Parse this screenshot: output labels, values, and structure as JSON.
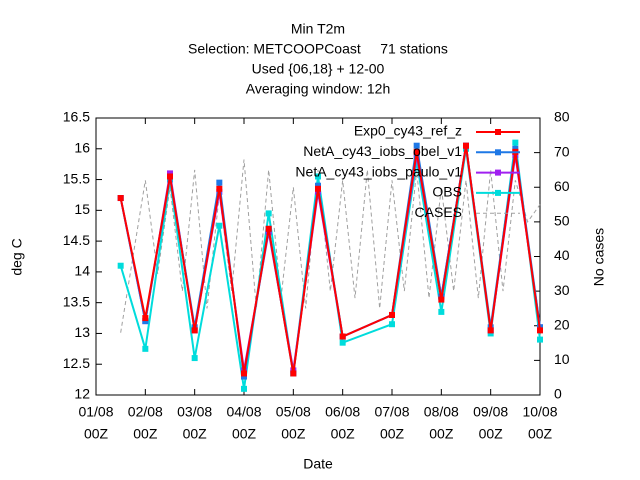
{
  "chart_data": {
    "type": "line",
    "title": [
      "Min T2m",
      "Selection: METCOOPCoast     71 stations",
      "Used {06,18} + 12-00",
      "Averaging window: 12h"
    ],
    "xlabel": "Date",
    "ylabel": "deg C",
    "y2label": "No cases",
    "xlim": [
      0,
      9
    ],
    "ylim": [
      12,
      16.5
    ],
    "y2lim": [
      0,
      80
    ],
    "xticks": [
      {
        "value": 0,
        "label": [
          "01/08",
          "00Z"
        ]
      },
      {
        "value": 1,
        "label": [
          "02/08",
          "00Z"
        ]
      },
      {
        "value": 2,
        "label": [
          "03/08",
          "00Z"
        ]
      },
      {
        "value": 3,
        "label": [
          "04/08",
          "00Z"
        ]
      },
      {
        "value": 4,
        "label": [
          "05/08",
          "00Z"
        ]
      },
      {
        "value": 5,
        "label": [
          "06/08",
          "00Z"
        ]
      },
      {
        "value": 6,
        "label": [
          "07/08",
          "00Z"
        ]
      },
      {
        "value": 7,
        "label": [
          "08/08",
          "00Z"
        ]
      },
      {
        "value": 8,
        "label": [
          "09/08",
          "00Z"
        ]
      },
      {
        "value": 9,
        "label": [
          "10/08",
          "00Z"
        ]
      }
    ],
    "yticks": [
      12,
      12.5,
      13,
      13.5,
      14,
      14.5,
      15,
      15.5,
      16,
      16.5
    ],
    "y2ticks": [
      0,
      10,
      20,
      30,
      40,
      50,
      60,
      70,
      80
    ],
    "x": [
      0.5,
      1,
      1.5,
      2,
      2.5,
      3,
      3.5,
      4,
      4.5,
      5,
      6,
      6.5,
      7,
      7.5,
      8,
      8.5,
      9
    ],
    "series": [
      {
        "name": "Exp0_cy43_ref_z",
        "color": "#ff0000",
        "markers": true,
        "values": [
          15.2,
          13.25,
          15.55,
          13.05,
          15.35,
          12.35,
          14.7,
          12.35,
          15.35,
          12.95,
          13.3,
          15.95,
          13.55,
          16.05,
          13.05,
          15.95,
          13.05
        ]
      },
      {
        "name": "NetA_cy43_iobs_obel_v1",
        "color": "#1e78e6",
        "markers": true,
        "values": [
          15.2,
          13.2,
          15.55,
          13.1,
          15.45,
          12.3,
          14.7,
          12.35,
          15.4,
          12.95,
          13.3,
          16.05,
          13.6,
          16.05,
          13.1,
          16.0,
          13.1
        ]
      },
      {
        "name": "NetA_cy43_iobs_paulo_v1",
        "color": "#a020f0",
        "markers": true,
        "values": [
          15.2,
          13.2,
          15.6,
          13.05,
          15.3,
          12.4,
          14.65,
          12.4,
          15.3,
          12.95,
          13.3,
          15.9,
          13.6,
          16.05,
          13.05,
          15.9,
          13.1
        ]
      },
      {
        "name": "OBS",
        "color": "#00dcdc",
        "markers": true,
        "values": [
          14.1,
          12.75,
          15.5,
          12.6,
          14.75,
          12.1,
          14.95,
          12.35,
          15.55,
          12.85,
          13.15,
          15.8,
          13.35,
          16.0,
          13.0,
          16.1,
          12.9
        ]
      },
      {
        "name": "CASES",
        "color": "#a0a0a0",
        "axis": "y2",
        "dashed": true,
        "markers": false,
        "x": [
          0.5,
          0.75,
          1,
          1.25,
          1.5,
          1.75,
          2,
          2.25,
          2.5,
          2.75,
          3,
          3.25,
          3.5,
          3.75,
          4,
          4.25,
          4.5,
          4.75,
          5,
          5.25,
          5.5,
          5.75,
          6,
          6.25,
          6.5,
          6.75,
          7,
          7.25,
          7.5,
          7.75,
          8,
          8.25,
          8.5,
          8.75,
          9
        ],
        "values": [
          18,
          40,
          62,
          35,
          60,
          30,
          65,
          25,
          58,
          30,
          68,
          25,
          65,
          28,
          60,
          25,
          65,
          30,
          62,
          28,
          65,
          25,
          62,
          30,
          65,
          28,
          60,
          30,
          62,
          28,
          65,
          30,
          62,
          50,
          55
        ]
      }
    ]
  }
}
